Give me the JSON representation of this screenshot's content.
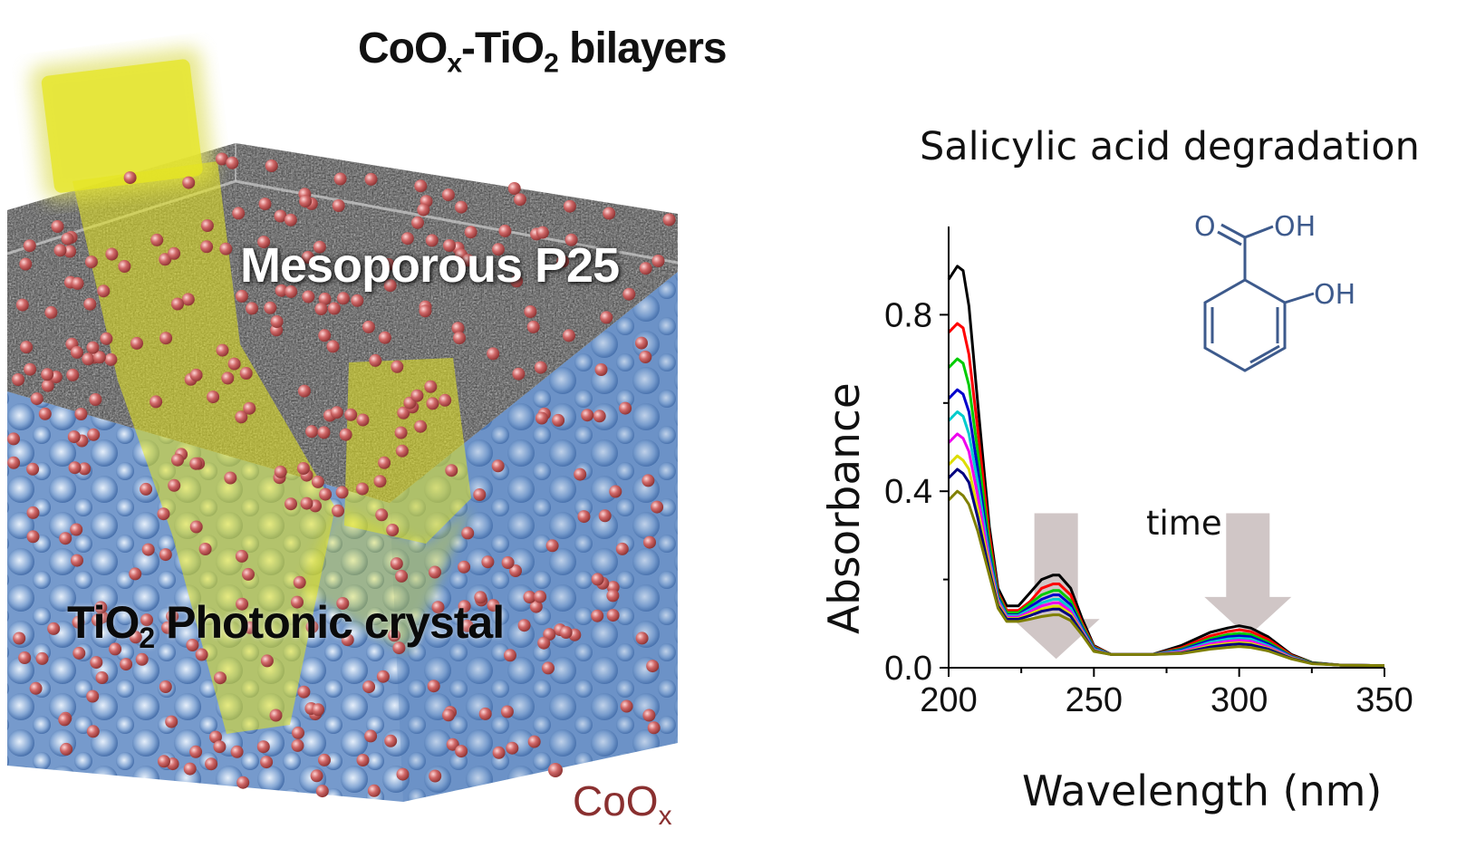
{
  "title": {
    "main": "CoO",
    "sub1": "x",
    "mid": "-TiO",
    "sub2": "2",
    "tail": " bilayers"
  },
  "labels": {
    "mesoporous": "Mesoporous P25",
    "photonic_prefix": "TiO",
    "photonic_sub": "2",
    "photonic_suffix": " Photonic crystal",
    "legend_main": "CoO",
    "legend_sub": "x"
  },
  "molecule": {
    "o_label": "O",
    "oh1_label": "OH",
    "oh2_label": "OH"
  },
  "annotation": {
    "arrow_label": "time"
  },
  "colors": {
    "particle": "#c25555",
    "light": "#e6e61e",
    "crystal": "#5b86bf",
    "arrow": "#c8bcbc",
    "molecule": "#3d5a8c"
  },
  "chart_data": {
    "type": "line",
    "title": "Salicylic acid degradation",
    "xlabel": "Wavelength (nm)",
    "ylabel": "Absorbance",
    "xlim": [
      200,
      350
    ],
    "ylim": [
      0,
      1.0
    ],
    "xticks": [
      200,
      250,
      300,
      350
    ],
    "yticks": [
      0.0,
      0.4,
      0.8
    ],
    "ytick_labels": [
      "0.0",
      "0.4",
      "0.8"
    ],
    "x": [
      200,
      203,
      205,
      207,
      210,
      214,
      217,
      220,
      224,
      228,
      232,
      236,
      238,
      242,
      246,
      250,
      256,
      260,
      270,
      280,
      290,
      296,
      300,
      304,
      310,
      318,
      325,
      335,
      350
    ],
    "series": [
      {
        "color": "#000000",
        "values": [
          0.88,
          0.91,
          0.9,
          0.82,
          0.6,
          0.32,
          0.18,
          0.14,
          0.14,
          0.17,
          0.2,
          0.21,
          0.21,
          0.18,
          0.11,
          0.05,
          0.03,
          0.03,
          0.03,
          0.05,
          0.08,
          0.09,
          0.095,
          0.09,
          0.07,
          0.03,
          0.012,
          0.006,
          0.005
        ]
      },
      {
        "color": "#ff0000",
        "values": [
          0.76,
          0.78,
          0.77,
          0.71,
          0.54,
          0.3,
          0.17,
          0.13,
          0.13,
          0.15,
          0.18,
          0.19,
          0.19,
          0.165,
          0.1,
          0.048,
          0.03,
          0.03,
          0.03,
          0.045,
          0.072,
          0.082,
          0.086,
          0.082,
          0.064,
          0.028,
          0.011,
          0.006,
          0.005
        ]
      },
      {
        "color": "#00cc00",
        "values": [
          0.68,
          0.7,
          0.69,
          0.64,
          0.49,
          0.28,
          0.165,
          0.125,
          0.125,
          0.145,
          0.165,
          0.175,
          0.175,
          0.152,
          0.095,
          0.046,
          0.03,
          0.03,
          0.03,
          0.042,
          0.066,
          0.075,
          0.078,
          0.075,
          0.058,
          0.026,
          0.011,
          0.006,
          0.005
        ]
      },
      {
        "color": "#0000cc",
        "values": [
          0.61,
          0.63,
          0.62,
          0.58,
          0.45,
          0.26,
          0.16,
          0.12,
          0.12,
          0.138,
          0.155,
          0.165,
          0.165,
          0.143,
          0.09,
          0.044,
          0.03,
          0.03,
          0.03,
          0.04,
          0.062,
          0.07,
          0.072,
          0.07,
          0.054,
          0.025,
          0.01,
          0.006,
          0.005
        ]
      },
      {
        "color": "#00cccc",
        "values": [
          0.56,
          0.58,
          0.57,
          0.53,
          0.42,
          0.25,
          0.155,
          0.118,
          0.118,
          0.132,
          0.147,
          0.155,
          0.155,
          0.135,
          0.086,
          0.042,
          0.03,
          0.03,
          0.03,
          0.038,
          0.058,
          0.065,
          0.067,
          0.065,
          0.05,
          0.024,
          0.01,
          0.006,
          0.005
        ]
      },
      {
        "color": "#ee00ee",
        "values": [
          0.51,
          0.53,
          0.52,
          0.49,
          0.39,
          0.24,
          0.15,
          0.115,
          0.115,
          0.127,
          0.14,
          0.147,
          0.147,
          0.128,
          0.083,
          0.04,
          0.03,
          0.03,
          0.03,
          0.036,
          0.054,
          0.06,
          0.062,
          0.06,
          0.047,
          0.023,
          0.01,
          0.006,
          0.005
        ]
      },
      {
        "color": "#dddd00",
        "values": [
          0.46,
          0.48,
          0.47,
          0.45,
          0.36,
          0.23,
          0.145,
          0.112,
          0.112,
          0.122,
          0.133,
          0.139,
          0.139,
          0.122,
          0.08,
          0.039,
          0.03,
          0.03,
          0.03,
          0.034,
          0.05,
          0.055,
          0.057,
          0.055,
          0.044,
          0.022,
          0.01,
          0.006,
          0.005
        ]
      },
      {
        "color": "#000080",
        "values": [
          0.43,
          0.45,
          0.44,
          0.42,
          0.34,
          0.22,
          0.14,
          0.11,
          0.11,
          0.118,
          0.128,
          0.133,
          0.133,
          0.117,
          0.078,
          0.038,
          0.03,
          0.03,
          0.03,
          0.033,
          0.047,
          0.052,
          0.054,
          0.052,
          0.042,
          0.021,
          0.01,
          0.006,
          0.005
        ]
      },
      {
        "color": "#808000",
        "values": [
          0.38,
          0.4,
          0.39,
          0.37,
          0.31,
          0.21,
          0.135,
          0.105,
          0.105,
          0.11,
          0.116,
          0.12,
          0.12,
          0.107,
          0.074,
          0.037,
          0.03,
          0.03,
          0.03,
          0.032,
          0.042,
          0.046,
          0.048,
          0.046,
          0.038,
          0.02,
          0.009,
          0.006,
          0.005
        ]
      }
    ],
    "arrows": [
      {
        "x": 237,
        "from": 0.35,
        "to": 0.02
      },
      {
        "x": 303,
        "from": 0.35,
        "to": 0.07
      }
    ]
  }
}
